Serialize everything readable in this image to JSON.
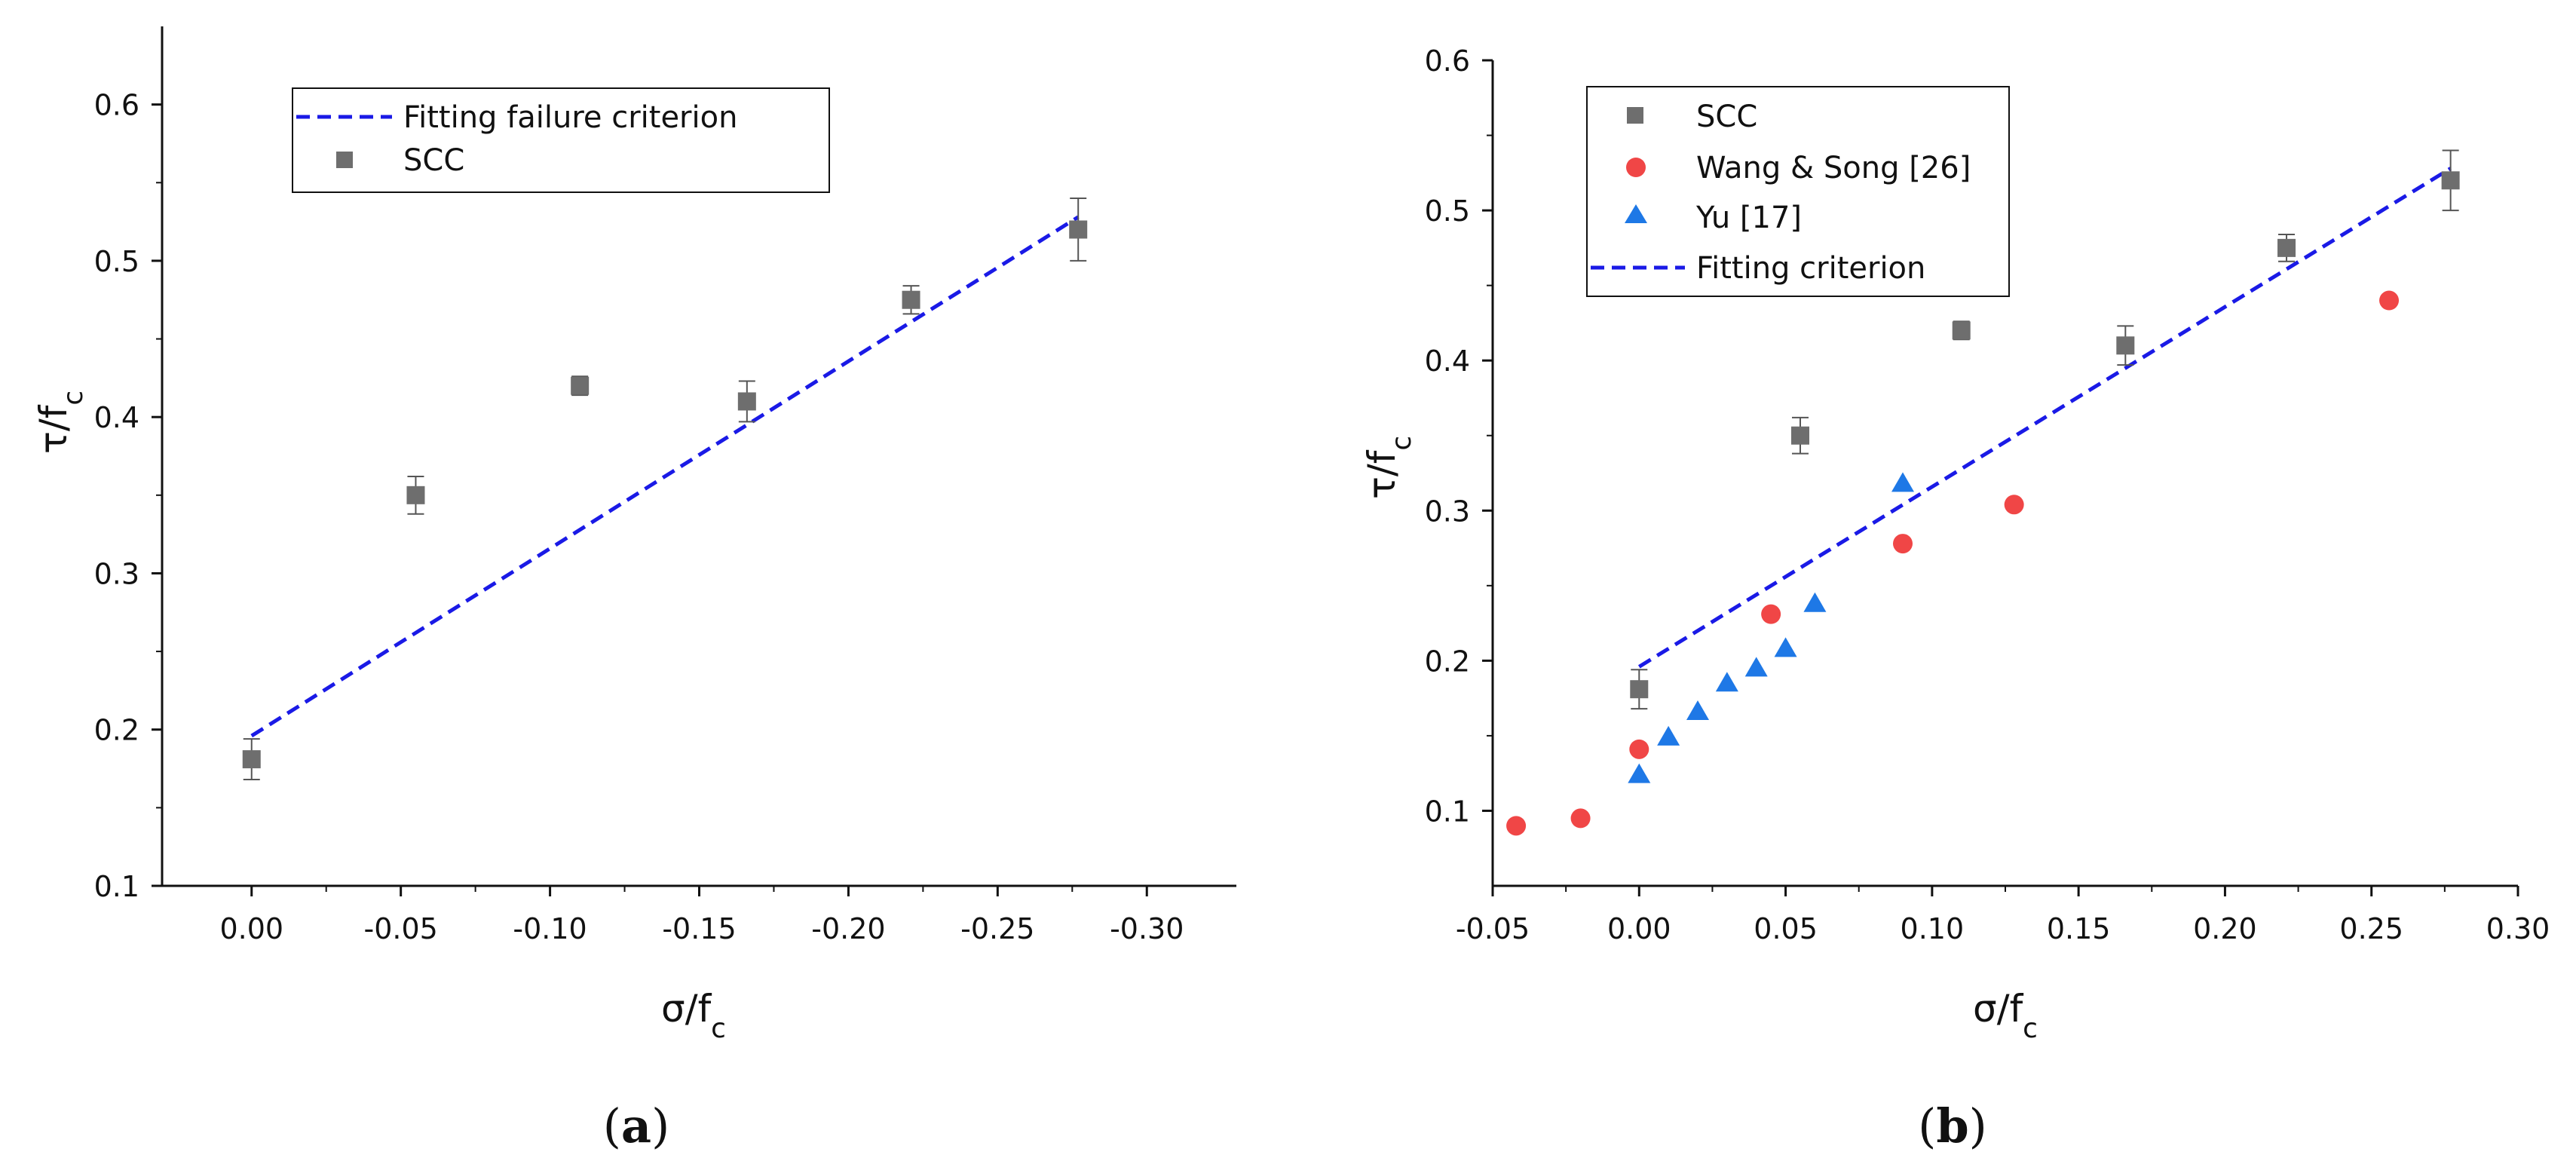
{
  "chart_data": [
    {
      "type": "scatter",
      "panel": "(a)",
      "panel_letter": "a",
      "xlabel": "σ/f",
      "xlabel_sub": "c",
      "ylabel": "τ/f",
      "ylabel_sub": "c",
      "xlim": [
        0.03,
        -0.33
      ],
      "ylim": [
        0.1,
        0.65
      ],
      "xticks": [
        0.0,
        -0.05,
        -0.1,
        -0.15,
        -0.2,
        -0.25,
        -0.3
      ],
      "xtick_labels": [
        "0.00",
        "-0.05",
        "-0.10",
        "-0.15",
        "-0.20",
        "-0.25",
        "-0.30"
      ],
      "yticks": [
        0.1,
        0.2,
        0.3,
        0.4,
        0.5,
        0.6
      ],
      "ytick_labels": [
        "0.1",
        "0.2",
        "0.3",
        "0.4",
        "0.5",
        "0.6"
      ],
      "legend_position": "top-left",
      "series": [
        {
          "name": "Fitting failure criterion",
          "kind": "line",
          "style": "dashed",
          "color": "#1a1ae6",
          "x": [
            0.0,
            -0.277
          ],
          "y": [
            0.196,
            0.528
          ]
        },
        {
          "name": "SCC",
          "kind": "scatter",
          "marker": "square",
          "color": "#6e6e6e",
          "x": [
            0.0,
            -0.055,
            -0.11,
            -0.166,
            -0.221,
            -0.277
          ],
          "y": [
            0.181,
            0.35,
            0.42,
            0.41,
            0.475,
            0.52
          ],
          "err": [
            0.013,
            0.012,
            0.006,
            0.013,
            0.009,
            0.02
          ]
        }
      ]
    },
    {
      "type": "scatter",
      "panel": "(b)",
      "panel_letter": "b",
      "xlabel": "σ/f",
      "xlabel_sub": "c",
      "ylabel": "τ/f",
      "ylabel_sub": "c",
      "xlim": [
        -0.05,
        0.3
      ],
      "ylim": [
        0.05,
        0.6
      ],
      "xticks": [
        -0.05,
        0.0,
        0.05,
        0.1,
        0.15,
        0.2,
        0.25,
        0.3
      ],
      "xtick_labels": [
        "-0.05",
        "0.00",
        "0.05",
        "0.10",
        "0.15",
        "0.20",
        "0.25",
        "0.30"
      ],
      "yticks": [
        0.1,
        0.2,
        0.3,
        0.4,
        0.5,
        0.6
      ],
      "ytick_labels": [
        "0.1",
        "0.2",
        "0.3",
        "0.4",
        "0.5",
        "0.6"
      ],
      "legend_position": "top-left",
      "series": [
        {
          "name": "SCC",
          "kind": "scatter",
          "marker": "square",
          "color": "#6e6e6e",
          "x": [
            0.0,
            0.055,
            0.11,
            0.166,
            0.221,
            0.277
          ],
          "y": [
            0.181,
            0.35,
            0.42,
            0.41,
            0.475,
            0.52
          ],
          "err": [
            0.013,
            0.012,
            0.006,
            0.013,
            0.009,
            0.02
          ]
        },
        {
          "name": "Wang & Song [26]",
          "kind": "scatter",
          "marker": "circle",
          "color": "#f04646",
          "x": [
            -0.042,
            -0.02,
            0.0,
            0.045,
            0.09,
            0.128,
            0.256
          ],
          "y": [
            0.09,
            0.095,
            0.141,
            0.231,
            0.278,
            0.304,
            0.44
          ]
        },
        {
          "name": "Yu [17]",
          "kind": "scatter",
          "marker": "triangle",
          "color": "#1e78e6",
          "x": [
            0.0,
            0.01,
            0.02,
            0.03,
            0.04,
            0.05,
            0.06,
            0.09
          ],
          "y": [
            0.124,
            0.149,
            0.166,
            0.185,
            0.195,
            0.208,
            0.238,
            0.318
          ]
        },
        {
          "name": "Fitting criterion",
          "kind": "line",
          "style": "dashed",
          "color": "#1a1ae6",
          "x": [
            0.0,
            0.277
          ],
          "y": [
            0.196,
            0.528
          ]
        }
      ]
    }
  ]
}
